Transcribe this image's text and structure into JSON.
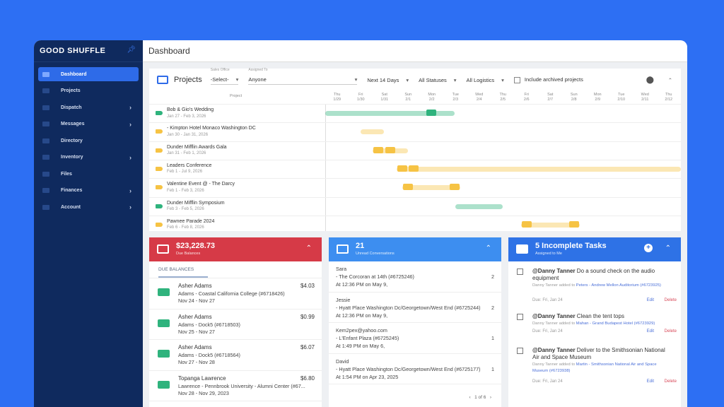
{
  "sidebar": {
    "logo": "GOOD SHUFFLE",
    "items": [
      {
        "label": "Dashboard",
        "active": true
      },
      {
        "label": "Projects"
      },
      {
        "label": "Dispatch",
        "chev": true
      },
      {
        "label": "Messages",
        "chev": true
      },
      {
        "label": "Directory"
      },
      {
        "label": "Inventory",
        "chev": true
      },
      {
        "label": "Files"
      },
      {
        "label": "Finances",
        "chev": true
      },
      {
        "label": "Account",
        "chev": true
      }
    ]
  },
  "header": {
    "title": "Dashboard"
  },
  "projects": {
    "title": "Projects",
    "filters": {
      "sales_office_label": "Sales Office",
      "sales_office": "-Select-",
      "assigned_label": "Assigned To",
      "assigned": "Anyone",
      "range": "Next 14 Days",
      "status": "All Statuses",
      "logistics": "All Logistics",
      "archived": "Include archived projects"
    },
    "column_header": "Project",
    "days": [
      [
        "Thu",
        "1/29"
      ],
      [
        "Fri",
        "1/30"
      ],
      [
        "Sat",
        "1/31"
      ],
      [
        "Sun",
        "2/1"
      ],
      [
        "Mon",
        "2/2"
      ],
      [
        "Tue",
        "2/3"
      ],
      [
        "Wed",
        "2/4"
      ],
      [
        "Thu",
        "2/5"
      ],
      [
        "Fri",
        "2/6"
      ],
      [
        "Sat",
        "2/7"
      ],
      [
        "Sun",
        "2/8"
      ],
      [
        "Mon",
        "2/9"
      ],
      [
        "Tue",
        "2/10"
      ],
      [
        "Wed",
        "2/11"
      ],
      [
        "Thu",
        "2/12"
      ]
    ],
    "rows": [
      {
        "name": "Bob & Gio's Wedding",
        "dates": "Jan 27 - Feb 3, 2026",
        "color": "#2fb37d"
      },
      {
        "name": "- Kimpton Hotel Monaco Washington DC",
        "dates": "Jan 30 - Jan 31, 2026",
        "color": "#f6c344"
      },
      {
        "name": "Dunder Mifflin Awards Gala",
        "dates": "Jan 31 - Feb 1, 2026",
        "color": "#f6c344"
      },
      {
        "name": "Leaders Conference",
        "dates": "Feb 1 - Jul 9, 2026",
        "color": "#f6c344"
      },
      {
        "name": "Valentine Event @ - The Darcy",
        "dates": "Feb 1 - Feb 3, 2026",
        "color": "#f6c344"
      },
      {
        "name": "Dunder Mifflin Symposium",
        "dates": "Feb 3 - Feb 5, 2026",
        "color": "#2fb37d"
      },
      {
        "name": "Pawnee Parade 2024",
        "dates": "Feb 6 - Feb 8, 2026",
        "color": "#f6c344"
      }
    ]
  },
  "balances": {
    "amount": "$23,228.73",
    "label": "Due Balances",
    "tab": "DUE BALANCES",
    "color": "#d63a47",
    "items": [
      {
        "name": "Asher Adams",
        "amount": "$4.03",
        "project": "Adams - Coastal California College (#6718426)",
        "dates": "Nov 24 - Nov 27"
      },
      {
        "name": "Asher Adams",
        "amount": "$0.99",
        "project": "Adams - Dock5 (#6718503)",
        "dates": "Nov 25 - Nov 27"
      },
      {
        "name": "Asher Adams",
        "amount": "$6.07",
        "project": "Adams - Dock5 (#6718564)",
        "dates": "Nov 27 - Nov 28"
      },
      {
        "name": "Topanga Lawrence",
        "amount": "$6.80",
        "project": "Lawrence - Pennbrook University - Alumni Center (#67...",
        "dates": "Nov 28 - Nov 29, 2023"
      }
    ]
  },
  "conversations": {
    "count": "21",
    "label": "Unread Conversations",
    "color": "#3d8ef0",
    "items": [
      {
        "name": "Sara",
        "project": "- The Corcoran at 14th (#6725246)",
        "count": "2",
        "time": "At 12:36 PM on May 9,"
      },
      {
        "name": "Jessie",
        "project": "- Hyatt Place Washington Dc/Georgetown/West End (#6725244)",
        "count": "2",
        "time": "At 12:36 PM on May 9,"
      },
      {
        "name": "Kem2pex@yahoo.com",
        "project": "- L'Enfant Plaza (#6725245)",
        "count": "1",
        "time": "At 1:49 PM on May 6,"
      },
      {
        "name": "David",
        "project": "- Hyatt Place Washington Dc/Georgetown/West End (#6725177)",
        "count": "1",
        "time": "At 1:54 PM on Apr 23, 2025"
      }
    ],
    "pager": "1 of 6"
  },
  "tasks": {
    "title": "5 Incomplete Tasks",
    "label": "Assigned to Me",
    "color": "#2e72e6",
    "items": [
      {
        "who": "@Danny Tanner",
        "text": "Do a sound check on the audio equipment",
        "added": "Danny Tanner added to",
        "link": "Peters - Andrew Mellon Auditorium (#6723925)",
        "due": "Due: Fri, Jan 24"
      },
      {
        "who": "@Danny Tanner",
        "text": "Clean the tent tops",
        "added": "Danny Tanner added to",
        "link": "Mahan - Grand Budapest Hotel (#6723929)",
        "due": "Due: Fri, Jan 24"
      },
      {
        "who": "@Danny Tanner",
        "text": "Deliver to the Smithsonian National Air and Space Museum",
        "added": "Danny Tanner added to",
        "link": "Martin - Smithsonian National Air and Space Museum (#6723938)",
        "due": "Due: Fri, Jan 24"
      }
    ],
    "edit": "Edit",
    "delete": "Delete"
  }
}
